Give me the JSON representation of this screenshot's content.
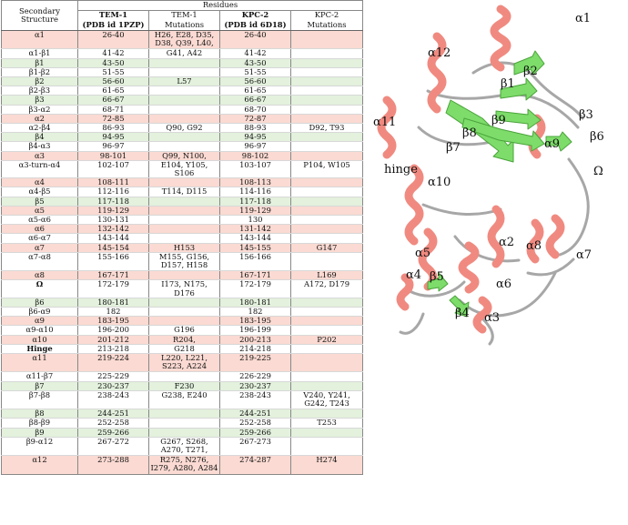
{
  "header": {
    "col1_line1": "Secondary",
    "col1_line2": "Structure",
    "residues": "Residues",
    "tem_line1": "TEM-1",
    "tem_line2": "(PDB id 1PZP)",
    "tem_mut_line1": "TEM-1",
    "tem_mut_line2": "Mutations",
    "kpc_line1": "KPC-2",
    "kpc_line2": "(PDB id 6D18)",
    "kpc_mut_line1": "KPC-2",
    "kpc_mut_line2": "Mutations"
  },
  "colors": {
    "helix": "#fadad2",
    "strand": "#e3f1dd",
    "loop": "#ffffff",
    "helix_ribbon": "#f08a80",
    "strand_ribbon": "#7ddc6a"
  },
  "rows": [
    {
      "s": "α1",
      "t": "26-40",
      "tm": "H26, E28, D35, D38, Q39, L40,",
      "k": "26-40",
      "km": "",
      "c": "helix",
      "lines": 2
    },
    {
      "s": "α1-β1",
      "t": "41-42",
      "tm": "G41, A42",
      "k": "41-42",
      "km": "",
      "c": "loop",
      "lines": 1
    },
    {
      "s": "β1",
      "t": "43-50",
      "tm": "",
      "k": "43-50",
      "km": "",
      "c": "strand",
      "lines": 1
    },
    {
      "s": "β1-β2",
      "t": "51-55",
      "tm": "",
      "k": "51-55",
      "km": "",
      "c": "loop",
      "lines": 1
    },
    {
      "s": "β2",
      "t": "56-60",
      "tm": "L57",
      "k": "56-60",
      "km": "",
      "c": "strand",
      "lines": 1
    },
    {
      "s": "β2-β3",
      "t": "61-65",
      "tm": "",
      "k": "61-65",
      "km": "",
      "c": "loop",
      "lines": 1
    },
    {
      "s": "β3",
      "t": "66-67",
      "tm": "",
      "k": "66-67",
      "km": "",
      "c": "strand",
      "lines": 1
    },
    {
      "s": "β3-α2",
      "t": "68-71",
      "tm": "",
      "k": "68-70",
      "km": "",
      "c": "loop",
      "lines": 1
    },
    {
      "s": "α2",
      "t": "72-85",
      "tm": "",
      "k": "72-87",
      "km": "",
      "c": "helix",
      "lines": 1
    },
    {
      "s": "α2-β4",
      "t": "86-93",
      "tm": "Q90, G92",
      "k": "88-93",
      "km": "D92, T93",
      "c": "loop",
      "lines": 1
    },
    {
      "s": "β4",
      "t": "94-95",
      "tm": "",
      "k": "94-95",
      "km": "",
      "c": "strand",
      "lines": 1
    },
    {
      "s": "β4-α3",
      "t": "96-97",
      "tm": "",
      "k": "96-97",
      "km": "",
      "c": "loop",
      "lines": 1
    },
    {
      "s": "α3",
      "t": "98-101",
      "tm": "Q99, N100,",
      "k": "98-102",
      "km": "",
      "c": "helix",
      "lines": 1
    },
    {
      "s": "α3-turn-α4",
      "t": "102-107",
      "tm": "E104, Y105, S106",
      "k": "103-107",
      "km": "P104, W105",
      "c": "loop",
      "lines": 1
    },
    {
      "s": "α4",
      "t": "108-111",
      "tm": "",
      "k": "108-113",
      "km": "",
      "c": "helix",
      "lines": 1
    },
    {
      "s": "α4-β5",
      "t": "112-116",
      "tm": "T114, D115",
      "k": "114-116",
      "km": "",
      "c": "loop",
      "lines": 1
    },
    {
      "s": "β5",
      "t": "117-118",
      "tm": "",
      "k": "117-118",
      "km": "",
      "c": "strand",
      "lines": 1
    },
    {
      "s": "α5",
      "t": "119-129",
      "tm": "",
      "k": "119-129",
      "km": "",
      "c": "helix",
      "lines": 1
    },
    {
      "s": "α5-α6",
      "t": "130-131",
      "tm": "",
      "k": "130",
      "km": "",
      "c": "loop",
      "lines": 1
    },
    {
      "s": "α6",
      "t": "132-142",
      "tm": "",
      "k": "131-142",
      "km": "",
      "c": "helix",
      "lines": 1
    },
    {
      "s": "α6-α7",
      "t": "143-144",
      "tm": "",
      "k": "143-144",
      "km": "",
      "c": "loop",
      "lines": 1
    },
    {
      "s": "α7",
      "t": "145-154",
      "tm": "H153",
      "k": "145-155",
      "km": "G147",
      "c": "helix",
      "lines": 1
    },
    {
      "s": "α7-α8",
      "t": "155-166",
      "tm": "M155, G156, D157, H158",
      "k": "156-166",
      "km": "",
      "c": "loop",
      "lines": 2
    },
    {
      "s": "α8",
      "t": "167-171",
      "tm": "",
      "k": "167-171",
      "km": "L169",
      "c": "helix",
      "lines": 1
    },
    {
      "s": "Ω",
      "t": "172-179",
      "tm": "I173, N175, D176",
      "k": "172-179",
      "km": "A172, D179",
      "c": "loop",
      "lines": 1,
      "bold": true
    },
    {
      "s": "β6",
      "t": "180-181",
      "tm": "",
      "k": "180-181",
      "km": "",
      "c": "strand",
      "lines": 1
    },
    {
      "s": "β6-α9",
      "t": "182",
      "tm": "",
      "k": "182",
      "km": "",
      "c": "loop",
      "lines": 1
    },
    {
      "s": "α9",
      "t": "183-195",
      "tm": "",
      "k": "183-195",
      "km": "",
      "c": "helix",
      "lines": 1
    },
    {
      "s": "α9-α10",
      "t": "196-200",
      "tm": "G196",
      "k": "196-199",
      "km": "",
      "c": "loop",
      "lines": 1
    },
    {
      "s": "α10",
      "t": "201-212",
      "tm": "R204,",
      "k": "200-213",
      "km": "P202",
      "c": "helix",
      "lines": 1
    },
    {
      "s": "Hinge",
      "t": "213-218",
      "tm": "G218",
      "k": "214-218",
      "km": "",
      "c": "loop",
      "lines": 1,
      "bold": true
    },
    {
      "s": "α11",
      "t": "219-224",
      "tm": "L220, L221, S223, A224",
      "k": "219-225",
      "km": "",
      "c": "helix",
      "lines": 2
    },
    {
      "s": "α11-β7",
      "t": "225-229",
      "tm": "",
      "k": "226-229",
      "km": "",
      "c": "loop",
      "lines": 1
    },
    {
      "s": "β7",
      "t": "230-237",
      "tm": "F230",
      "k": "230-237",
      "km": "",
      "c": "strand",
      "lines": 1
    },
    {
      "s": "β7-β8",
      "t": "238-243",
      "tm": "G238, E240",
      "k": "238-243",
      "km": "V240, Y241, G242, T243",
      "c": "loop",
      "lines": 2
    },
    {
      "s": "β8",
      "t": "244-251",
      "tm": "",
      "k": "244-251",
      "km": "",
      "c": "strand",
      "lines": 1
    },
    {
      "s": "β8-β9",
      "t": "252-258",
      "tm": "",
      "k": "252-258",
      "km": "T253",
      "c": "loop",
      "lines": 1
    },
    {
      "s": "β9",
      "t": "259-266",
      "tm": "",
      "k": "259-266",
      "km": "",
      "c": "strand",
      "lines": 1
    },
    {
      "s": "β9-α12",
      "t": "267-272",
      "tm": "G267, S268, A270, T271,",
      "k": "267-273",
      "km": "",
      "c": "loop",
      "lines": 2
    },
    {
      "s": "α12",
      "t": "273-288",
      "tm": "R275, N276, I279, A280, A284",
      "k": "274-287",
      "km": "H274",
      "c": "helix",
      "lines": 2
    }
  ],
  "structure_labels": {
    "a1": "α1",
    "a12": "α12",
    "b2": "β2",
    "b1": "β1",
    "b9": "β9",
    "b3": "β3",
    "a11": "α11",
    "b8": "β8",
    "a9": "α9",
    "b6": "β6",
    "b7": "β7",
    "hinge": "hinge",
    "omega": "Ω",
    "a10": "α10",
    "a2": "α2",
    "a8": "α8",
    "a5": "α5",
    "a7": "α7",
    "a4": "α4",
    "b5": "β5",
    "a6": "α6",
    "b4": "β4",
    "a3": "α3"
  }
}
